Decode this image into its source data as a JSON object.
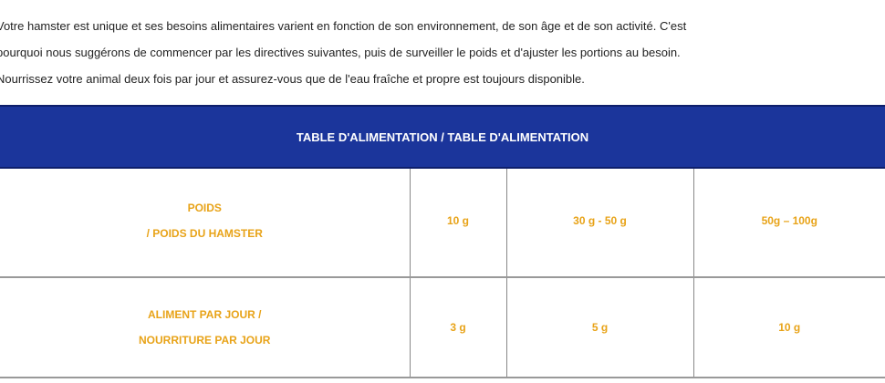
{
  "intro": [
    "Votre hamster est unique et ses besoins alimentaires varient en fonction de son environnement, de son âge et de son activité. C'est",
    "pourquoi nous suggérons de commencer par les directives suivantes, puis de surveiller le poids et d'ajuster les portions au besoin.",
    "Nourrissez votre animal deux fois par jour et assurez-vous que de l'eau fraîche et propre est toujours disponible."
  ],
  "table": {
    "title": "TABLE D'ALIMENTATION / TABLE D'ALIMENTATION",
    "rows": [
      {
        "label": [
          "POIDS",
          "/ POIDS DU HAMSTER"
        ],
        "values": [
          "10 g",
          "30 g - 50 g",
          "50g – 100g"
        ]
      },
      {
        "label": [
          "ALIMENT PAR JOUR /",
          "NOURRITURE PAR JOUR"
        ],
        "values": [
          "3 g",
          "5 g",
          "10 g"
        ]
      }
    ]
  },
  "colors": {
    "header": "#1b359b",
    "cell_text": "#e8a318"
  }
}
